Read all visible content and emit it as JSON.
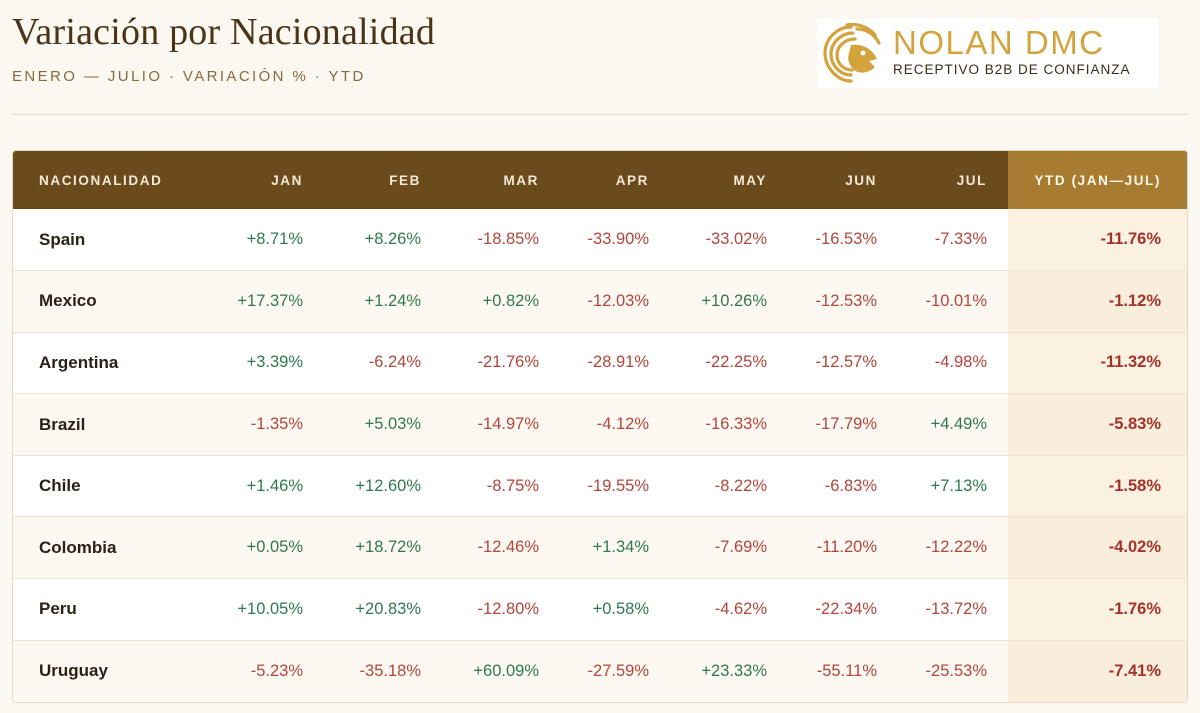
{
  "header": {
    "title": "Variación por Nacionalidad",
    "subtitle": "ENERO — JULIO · VARIACIÓN % · YTD"
  },
  "logo": {
    "name": "NOLAN DMC",
    "tagline": "RECEPTIVO B2B DE CONFIANZA",
    "icon": "lion-head-icon",
    "color": "#d3a33e"
  },
  "colors": {
    "header_bg": "#6b4a1c",
    "ytd_header_bg": "#a87b32",
    "positive": "#2f7a4c",
    "negative": "#b0463c",
    "ytd_text": "#a3322a"
  },
  "table": {
    "columns": [
      "NACIONALIDAD",
      "JAN",
      "FEB",
      "MAR",
      "APR",
      "MAY",
      "JUN",
      "JUL",
      "YTD (JAN—JUL)"
    ],
    "rows": [
      {
        "name": "Spain",
        "values": [
          "+8.71%",
          "+8.26%",
          "-18.85%",
          "-33.90%",
          "-33.02%",
          "-16.53%",
          "-7.33%"
        ],
        "ytd": "-11.76%"
      },
      {
        "name": "Mexico",
        "values": [
          "+17.37%",
          "+1.24%",
          "+0.82%",
          "-12.03%",
          "+10.26%",
          "-12.53%",
          "-10.01%"
        ],
        "ytd": "-1.12%"
      },
      {
        "name": "Argentina",
        "values": [
          "+3.39%",
          "-6.24%",
          "-21.76%",
          "-28.91%",
          "-22.25%",
          "-12.57%",
          "-4.98%"
        ],
        "ytd": "-11.32%"
      },
      {
        "name": "Brazil",
        "values": [
          "-1.35%",
          "+5.03%",
          "-14.97%",
          "-4.12%",
          "-16.33%",
          "-17.79%",
          "+4.49%"
        ],
        "ytd": "-5.83%"
      },
      {
        "name": "Chile",
        "values": [
          "+1.46%",
          "+12.60%",
          "-8.75%",
          "-19.55%",
          "-8.22%",
          "-6.83%",
          "+7.13%"
        ],
        "ytd": "-1.58%"
      },
      {
        "name": "Colombia",
        "values": [
          "+0.05%",
          "+18.72%",
          "-12.46%",
          "+1.34%",
          "-7.69%",
          "-11.20%",
          "-12.22%"
        ],
        "ytd": "-4.02%"
      },
      {
        "name": "Peru",
        "values": [
          "+10.05%",
          "+20.83%",
          "-12.80%",
          "+0.58%",
          "-4.62%",
          "-22.34%",
          "-13.72%"
        ],
        "ytd": "-1.76%"
      },
      {
        "name": "Uruguay",
        "values": [
          "-5.23%",
          "-35.18%",
          "+60.09%",
          "-27.59%",
          "+23.33%",
          "-55.11%",
          "-25.53%"
        ],
        "ytd": "-7.41%"
      }
    ]
  }
}
